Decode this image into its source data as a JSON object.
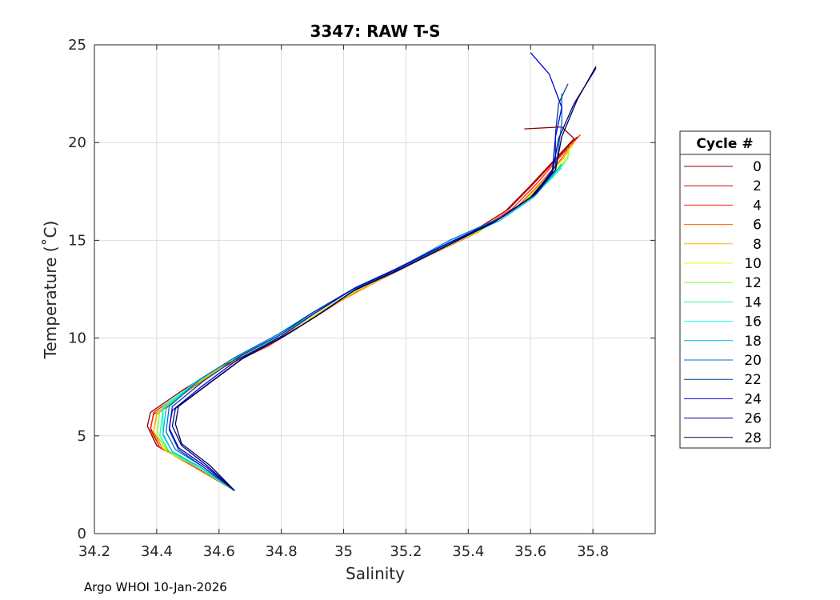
{
  "chart_data": {
    "type": "line",
    "title": "3347: RAW T-S",
    "xlabel": "Salinity",
    "ylabel": "Temperature (˚C)",
    "xlim": [
      34.2,
      36.0
    ],
    "ylim": [
      0,
      25
    ],
    "xticks": [
      "34.2",
      "34.4",
      "34.6",
      "34.8",
      "35",
      "35.2",
      "35.4",
      "35.6",
      "35.8"
    ],
    "yticks": [
      "0",
      "5",
      "10",
      "15",
      "20",
      "25"
    ],
    "grid": true,
    "legend": {
      "title": "Cycle #",
      "placement": "right",
      "entries": [
        "0",
        "2",
        "4",
        "6",
        "8",
        "10",
        "12",
        "14",
        "16",
        "18",
        "20",
        "22",
        "24",
        "26",
        "28"
      ]
    },
    "series": [
      {
        "name": "0",
        "color": "#800000",
        "points": [
          [
            34.65,
            2.2
          ],
          [
            34.5,
            3.6
          ],
          [
            34.4,
            4.5
          ],
          [
            34.37,
            5.5
          ],
          [
            34.38,
            6.2
          ],
          [
            34.48,
            7.3
          ],
          [
            34.6,
            8.5
          ],
          [
            34.75,
            9.6
          ],
          [
            34.85,
            10.6
          ],
          [
            34.98,
            11.9
          ],
          [
            35.1,
            13.0
          ],
          [
            35.25,
            14.2
          ],
          [
            35.4,
            15.3
          ],
          [
            35.52,
            16.5
          ],
          [
            35.6,
            17.8
          ],
          [
            35.67,
            19.0
          ],
          [
            35.74,
            20.2
          ],
          [
            35.7,
            20.8
          ],
          [
            35.58,
            20.7
          ]
        ]
      },
      {
        "name": "2",
        "color": "#cc0000",
        "points": [
          [
            34.65,
            2.2
          ],
          [
            34.5,
            3.6
          ],
          [
            34.41,
            4.4
          ],
          [
            34.38,
            5.4
          ],
          [
            34.39,
            6.1
          ],
          [
            34.49,
            7.2
          ],
          [
            34.6,
            8.4
          ],
          [
            34.75,
            9.6
          ],
          [
            34.86,
            10.6
          ],
          [
            34.99,
            11.9
          ],
          [
            35.11,
            13.0
          ],
          [
            35.26,
            14.2
          ],
          [
            35.41,
            15.4
          ],
          [
            35.53,
            16.6
          ],
          [
            35.61,
            17.9
          ],
          [
            35.68,
            19.1
          ],
          [
            35.75,
            20.3
          ]
        ]
      },
      {
        "name": "4",
        "color": "#ff2000",
        "points": [
          [
            34.65,
            2.2
          ],
          [
            34.51,
            3.6
          ],
          [
            34.41,
            4.4
          ],
          [
            34.38,
            5.3
          ],
          [
            34.39,
            6.2
          ],
          [
            34.49,
            7.3
          ],
          [
            34.61,
            8.5
          ],
          [
            34.76,
            9.6
          ],
          [
            34.86,
            10.7
          ],
          [
            34.99,
            12.0
          ],
          [
            35.12,
            13.1
          ],
          [
            35.26,
            14.3
          ],
          [
            35.42,
            15.4
          ],
          [
            35.54,
            16.6
          ],
          [
            35.62,
            17.9
          ],
          [
            35.69,
            19.2
          ],
          [
            35.76,
            20.4
          ]
        ]
      },
      {
        "name": "6",
        "color": "#ff6000",
        "points": [
          [
            34.65,
            2.2
          ],
          [
            34.51,
            3.5
          ],
          [
            34.42,
            4.3
          ],
          [
            34.39,
            5.2
          ],
          [
            34.4,
            6.1
          ],
          [
            34.5,
            7.3
          ],
          [
            34.61,
            8.5
          ],
          [
            34.76,
            9.6
          ],
          [
            34.86,
            10.6
          ],
          [
            34.99,
            11.9
          ],
          [
            35.12,
            13.0
          ],
          [
            35.27,
            14.2
          ],
          [
            35.43,
            15.4
          ],
          [
            35.55,
            16.6
          ],
          [
            35.63,
            17.9
          ],
          [
            35.7,
            19.2
          ],
          [
            35.74,
            20.1
          ]
        ]
      },
      {
        "name": "8",
        "color": "#ffb000",
        "points": [
          [
            34.65,
            2.2
          ],
          [
            34.52,
            3.5
          ],
          [
            34.43,
            4.3
          ],
          [
            34.39,
            5.2
          ],
          [
            34.4,
            6.2
          ],
          [
            34.5,
            7.4
          ],
          [
            34.62,
            8.6
          ],
          [
            34.76,
            9.7
          ],
          [
            34.86,
            10.7
          ],
          [
            35.0,
            12.0
          ],
          [
            35.13,
            13.1
          ],
          [
            35.28,
            14.3
          ],
          [
            35.44,
            15.5
          ],
          [
            35.56,
            16.7
          ],
          [
            35.64,
            18.0
          ],
          [
            35.71,
            19.3
          ],
          [
            35.74,
            20.0
          ]
        ]
      },
      {
        "name": "10",
        "color": "#d8ff20",
        "points": [
          [
            34.65,
            2.2
          ],
          [
            34.52,
            3.5
          ],
          [
            34.43,
            4.2
          ],
          [
            34.4,
            5.1
          ],
          [
            34.41,
            6.3
          ],
          [
            34.51,
            7.5
          ],
          [
            34.62,
            8.7
          ],
          [
            34.77,
            9.8
          ],
          [
            34.87,
            10.8
          ],
          [
            35.0,
            12.1
          ],
          [
            35.14,
            13.2
          ],
          [
            35.29,
            14.4
          ],
          [
            35.45,
            15.6
          ],
          [
            35.57,
            16.8
          ],
          [
            35.65,
            18.1
          ],
          [
            35.72,
            19.3
          ],
          [
            35.73,
            19.9
          ]
        ]
      },
      {
        "name": "12",
        "color": "#80ff30",
        "points": [
          [
            34.65,
            2.2
          ],
          [
            34.53,
            3.5
          ],
          [
            34.44,
            4.2
          ],
          [
            34.4,
            5.0
          ],
          [
            34.41,
            6.3
          ],
          [
            34.52,
            7.6
          ],
          [
            34.63,
            8.8
          ],
          [
            34.77,
            9.9
          ],
          [
            34.87,
            10.9
          ],
          [
            35.0,
            12.2
          ],
          [
            35.15,
            13.3
          ],
          [
            35.3,
            14.5
          ],
          [
            35.46,
            15.7
          ],
          [
            35.58,
            16.9
          ],
          [
            35.66,
            18.1
          ],
          [
            35.72,
            19.2
          ],
          [
            35.72,
            19.7
          ]
        ]
      },
      {
        "name": "14",
        "color": "#20ff90",
        "points": [
          [
            34.65,
            2.2
          ],
          [
            34.53,
            3.4
          ],
          [
            34.44,
            4.2
          ],
          [
            34.41,
            5.0
          ],
          [
            34.42,
            6.4
          ],
          [
            34.52,
            7.7
          ],
          [
            34.64,
            8.9
          ],
          [
            34.78,
            10.0
          ],
          [
            34.88,
            11.0
          ],
          [
            35.01,
            12.3
          ],
          [
            35.16,
            13.4
          ],
          [
            35.31,
            14.6
          ],
          [
            35.47,
            15.8
          ],
          [
            35.59,
            17.0
          ],
          [
            35.67,
            18.2
          ],
          [
            35.71,
            19.0
          ]
        ]
      },
      {
        "name": "16",
        "color": "#10ffe0",
        "points": [
          [
            34.65,
            2.2
          ],
          [
            34.54,
            3.4
          ],
          [
            34.45,
            4.2
          ],
          [
            34.42,
            5.0
          ],
          [
            34.42,
            6.5
          ],
          [
            34.53,
            7.8
          ],
          [
            34.64,
            8.9
          ],
          [
            34.78,
            10.0
          ],
          [
            34.88,
            11.1
          ],
          [
            35.02,
            12.4
          ],
          [
            35.17,
            13.5
          ],
          [
            35.32,
            14.7
          ],
          [
            35.48,
            15.9
          ],
          [
            35.6,
            17.1
          ],
          [
            35.66,
            18.1
          ],
          [
            35.7,
            18.7
          ]
        ]
      },
      {
        "name": "18",
        "color": "#00b8e8",
        "points": [
          [
            34.65,
            2.2
          ],
          [
            34.54,
            3.4
          ],
          [
            34.45,
            4.2
          ],
          [
            34.42,
            5.1
          ],
          [
            34.43,
            6.4
          ],
          [
            34.53,
            7.8
          ],
          [
            34.65,
            9.0
          ],
          [
            34.79,
            10.1
          ],
          [
            34.89,
            11.2
          ],
          [
            35.03,
            12.5
          ],
          [
            35.18,
            13.6
          ],
          [
            35.33,
            14.8
          ],
          [
            35.5,
            16.0
          ],
          [
            35.61,
            17.2
          ],
          [
            35.67,
            18.3
          ],
          [
            35.7,
            18.9
          ]
        ]
      },
      {
        "name": "20",
        "color": "#0070d0",
        "points": [
          [
            34.65,
            2.2
          ],
          [
            34.55,
            3.4
          ],
          [
            34.46,
            4.3
          ],
          [
            34.43,
            5.2
          ],
          [
            34.44,
            6.5
          ],
          [
            34.54,
            7.9
          ],
          [
            34.65,
            9.0
          ],
          [
            34.79,
            10.2
          ],
          [
            34.9,
            11.3
          ],
          [
            35.04,
            12.6
          ],
          [
            35.19,
            13.7
          ],
          [
            35.34,
            15.0
          ],
          [
            35.51,
            16.2
          ],
          [
            35.62,
            17.4
          ],
          [
            35.68,
            18.6
          ],
          [
            35.7,
            21.0
          ],
          [
            35.7,
            22.5
          ]
        ]
      },
      {
        "name": "22",
        "color": "#004090",
        "points": [
          [
            34.65,
            2.2
          ],
          [
            34.55,
            3.4
          ],
          [
            34.47,
            4.3
          ],
          [
            34.44,
            5.3
          ],
          [
            34.45,
            6.5
          ],
          [
            34.55,
            7.8
          ],
          [
            34.66,
            9.0
          ],
          [
            34.8,
            10.2
          ],
          [
            34.9,
            11.3
          ],
          [
            35.04,
            12.6
          ],
          [
            35.19,
            13.7
          ],
          [
            35.34,
            14.9
          ],
          [
            35.5,
            16.1
          ],
          [
            35.62,
            17.4
          ],
          [
            35.68,
            18.8
          ],
          [
            35.68,
            20.5
          ],
          [
            35.69,
            22.0
          ],
          [
            35.72,
            23.0
          ]
        ]
      },
      {
        "name": "24",
        "color": "#0000e0",
        "points": [
          [
            34.65,
            2.2
          ],
          [
            34.56,
            3.4
          ],
          [
            34.47,
            4.4
          ],
          [
            34.44,
            5.4
          ],
          [
            34.45,
            6.3
          ],
          [
            34.55,
            7.6
          ],
          [
            34.66,
            8.9
          ],
          [
            34.8,
            10.1
          ],
          [
            34.9,
            11.2
          ],
          [
            35.03,
            12.5
          ],
          [
            35.18,
            13.6
          ],
          [
            35.33,
            14.8
          ],
          [
            35.49,
            16.0
          ],
          [
            35.61,
            17.3
          ],
          [
            35.67,
            18.6
          ],
          [
            35.68,
            20.3
          ],
          [
            35.7,
            21.8
          ],
          [
            35.66,
            23.5
          ],
          [
            35.6,
            24.6
          ]
        ]
      },
      {
        "name": "26",
        "color": "#000090",
        "points": [
          [
            34.65,
            2.2
          ],
          [
            34.56,
            3.5
          ],
          [
            34.48,
            4.5
          ],
          [
            34.45,
            5.5
          ],
          [
            34.46,
            6.4
          ],
          [
            34.56,
            7.6
          ],
          [
            34.67,
            8.9
          ],
          [
            34.81,
            10.1
          ],
          [
            34.91,
            11.1
          ],
          [
            35.03,
            12.4
          ],
          [
            35.18,
            13.5
          ],
          [
            35.33,
            14.7
          ],
          [
            35.48,
            15.9
          ],
          [
            35.6,
            17.2
          ],
          [
            35.67,
            18.5
          ],
          [
            35.69,
            20.2
          ],
          [
            35.74,
            22.0
          ],
          [
            35.81,
            23.8
          ]
        ]
      },
      {
        "name": "28",
        "color": "#000050",
        "points": [
          [
            34.65,
            2.2
          ],
          [
            34.57,
            3.5
          ],
          [
            34.48,
            4.6
          ],
          [
            34.46,
            5.6
          ],
          [
            34.47,
            6.5
          ],
          [
            34.57,
            7.7
          ],
          [
            34.68,
            9.0
          ],
          [
            34.82,
            10.2
          ],
          [
            34.92,
            11.2
          ],
          [
            35.04,
            12.5
          ],
          [
            35.19,
            13.6
          ],
          [
            35.34,
            14.8
          ],
          [
            35.49,
            16.0
          ],
          [
            35.61,
            17.3
          ],
          [
            35.68,
            18.6
          ],
          [
            35.7,
            20.3
          ],
          [
            35.75,
            22.2
          ],
          [
            35.81,
            23.9
          ]
        ]
      }
    ]
  },
  "footer_text": "Argo WHOI 10-Jan-2026"
}
